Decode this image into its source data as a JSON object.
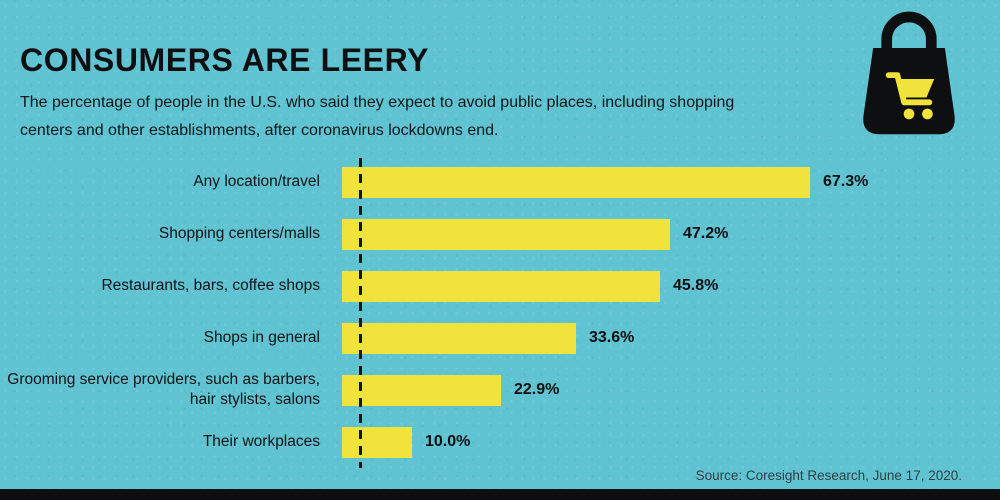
{
  "header": {
    "title": "CONSUMERS ARE LEERY",
    "subtitle": "The percentage of people in the U.S. who said they expect to avoid public places, including shopping centers and other establishments, after coronavirus lockdowns end."
  },
  "chart_data": {
    "type": "bar",
    "orientation": "horizontal",
    "title": "CONSUMERS ARE LEERY",
    "categories": [
      "Any location/travel",
      "Shopping centers/malls",
      "Restaurants, bars, coffee shops",
      "Shops in general",
      "Grooming service providers, such as barbers, hair stylists, salons",
      "Their workplaces"
    ],
    "values": [
      67.3,
      47.2,
      45.8,
      33.6,
      22.9,
      10.0
    ],
    "value_suffix": "%",
    "xlim": [
      0,
      70
    ],
    "bar_color": "#f2e23c",
    "axis_style": "dashed-vertical-baseline",
    "legend": "none",
    "grid": "off"
  },
  "footer": {
    "source": "Source: Coresight Research, June 17, 2020."
  },
  "icon": {
    "name": "shopping-bag-with-cart-icon"
  },
  "colors": {
    "background": "#5fc3d2",
    "bar": "#f2e23c",
    "text": "#101314",
    "strip": "#0c0e0f"
  }
}
